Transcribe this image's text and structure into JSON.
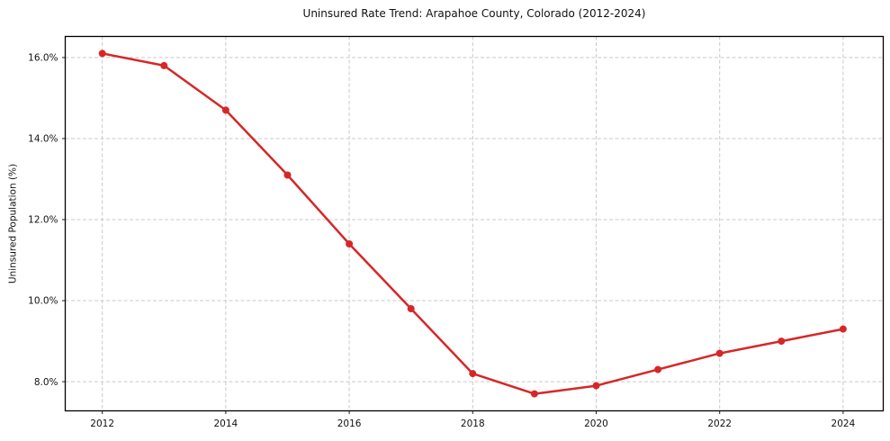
{
  "chart_data": {
    "type": "line",
    "title": "Uninsured Rate Trend: Arapahoe County, Colorado (2012-2024)",
    "xlabel": "",
    "ylabel": "Uninsured Population (%)",
    "x": [
      2012,
      2013,
      2014,
      2015,
      2016,
      2017,
      2018,
      2019,
      2020,
      2021,
      2022,
      2023,
      2024
    ],
    "values": [
      16.1,
      15.8,
      14.7,
      13.1,
      11.4,
      9.8,
      8.2,
      7.7,
      7.9,
      8.3,
      8.7,
      9.0,
      9.3
    ],
    "xlim": [
      2011.4,
      2024.65
    ],
    "ylim": [
      7.28,
      16.52
    ],
    "x_tick_values": [
      2012,
      2014,
      2016,
      2018,
      2020,
      2022,
      2024
    ],
    "x_tick_labels": [
      "2012",
      "2014",
      "2016",
      "2018",
      "2020",
      "2022",
      "2024"
    ],
    "y_tick_values": [
      8,
      10,
      12,
      14,
      16
    ],
    "y_tick_labels": [
      "8.0%",
      "10.0%",
      "12.0%",
      "14.0%",
      "16.0%"
    ],
    "grid": true,
    "legend": "none",
    "line_color": "#d62728",
    "marker_color": "#d62728",
    "grid_color": "#c9c9c9",
    "spine_color": "#000000",
    "tick_color": "#222222"
  }
}
